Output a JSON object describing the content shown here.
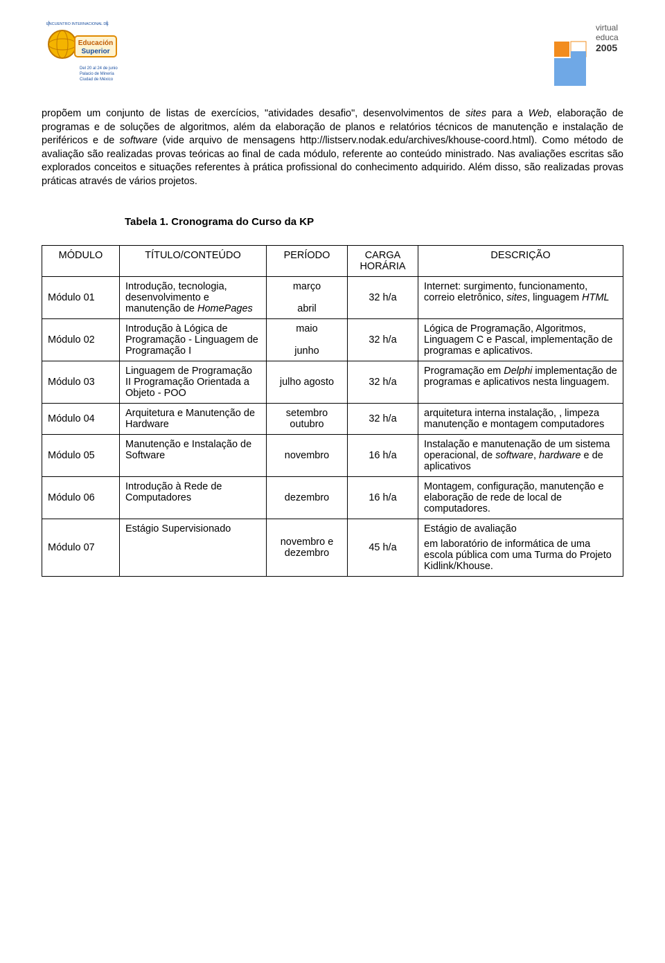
{
  "paragraph_html": "propõem um conjunto de listas de exercícios, \"atividades desafio\", desenvolvimentos de <span class=\"italic\">sites</span> para a <span class=\"italic\">Web</span>, elaboração de programas e de soluções de algoritmos, além da elaboração de planos e relatórios técnicos de manutenção e instalação de periféricos e de <span class=\"italic\">software</span> (vide arquivo de mensagens http://listserv.nodak.edu/archives/khouse-coord.html). Como método de avaliação são realizadas provas teóricas ao final de cada módulo, referente ao conteúdo ministrado. Nas avaliações escritas são explorados conceitos e situações referentes à prática profissional do conhecimento adquirido. Além disso, são realizadas provas práticas através de vários projetos.",
  "table_title": "Tabela 1.  Cronograma do Curso da KP",
  "headers": {
    "c1": "MÓDULO",
    "c2": "TÍTULO/CONTEÚDO",
    "c3": "PERÍODO",
    "c4": "CARGA HORÁRIA",
    "c5": "DESCRIÇÃO"
  },
  "rows": [
    {
      "modulo": "Módulo 01",
      "titulo_html": "Introdução, tecnologia, desenvolvimento e manutenção de <span class=\"italic\">HomePages</span>",
      "periodo_html": "março<br><br>abril",
      "carga": "32 h/a",
      "descricao_html": "Internet: surgimento, funcionamento, correio eletrônico, <span class=\"italic\">sites</span>, linguagem <span class=\"italic\">HTML</span>"
    },
    {
      "modulo": "Módulo 02",
      "titulo_html": "Introdução à Lógica de Programação - Linguagem de Programação I",
      "periodo_html": "maio<br><br>junho",
      "carga": "32 h/a",
      "descricao_html": "Lógica de Programação, Algoritmos, Linguagem C e Pascal, implementação de programas e aplicativos."
    },
    {
      "modulo": "Módulo 03",
      "titulo_html": "Linguagem de Programação II Programação Orientada a Objeto - POO",
      "periodo_html": "julho agosto",
      "carga": "32 h/a",
      "descricao_html": "Programação em <span class=\"italic\">Delphi</span> implementação de programas e aplicativos nesta linguagem."
    },
    {
      "modulo": "Módulo 04",
      "titulo_html": "Arquitetura e Manutenção de Hardware",
      "periodo_html": "setembro outubro",
      "carga": "32 h/a",
      "descricao_html": "arquitetura interna instalação, , limpeza manutenção e montagem computadores"
    },
    {
      "modulo": "Módulo 05",
      "titulo_html": "Manutenção e Instalação de Software",
      "periodo_html": "novembro",
      "carga": "16 h/a",
      "descricao_html": "Instalação e manutenação de um sistema operacional, de <span class=\"italic\">software</span>, <span class=\"italic\">hardware</span> e  de aplicativos"
    },
    {
      "modulo": "Módulo 06",
      "titulo_html": "Introdução à Rede de Computadores",
      "periodo_html": "dezembro",
      "carga": "16 h/a",
      "descricao_html": "Montagem, configuração, manutenção e  elaboração de rede de local de computadores."
    },
    {
      "modulo": "Módulo 07",
      "titulo_html": "Estágio Supervisionado",
      "periodo_html": "novembro e dezembro",
      "carga": "45 h/a",
      "descricao_html": "<div class=\"desc-block\"><p>Estágio de avaliação</p><p>em laboratório de informática de uma escola pública com uma Turma do Projeto Kidlink/Khouse.</p></div>"
    }
  ],
  "logo_left_text": "Educación Superior",
  "logo_right_text": "virtual educa 2005"
}
